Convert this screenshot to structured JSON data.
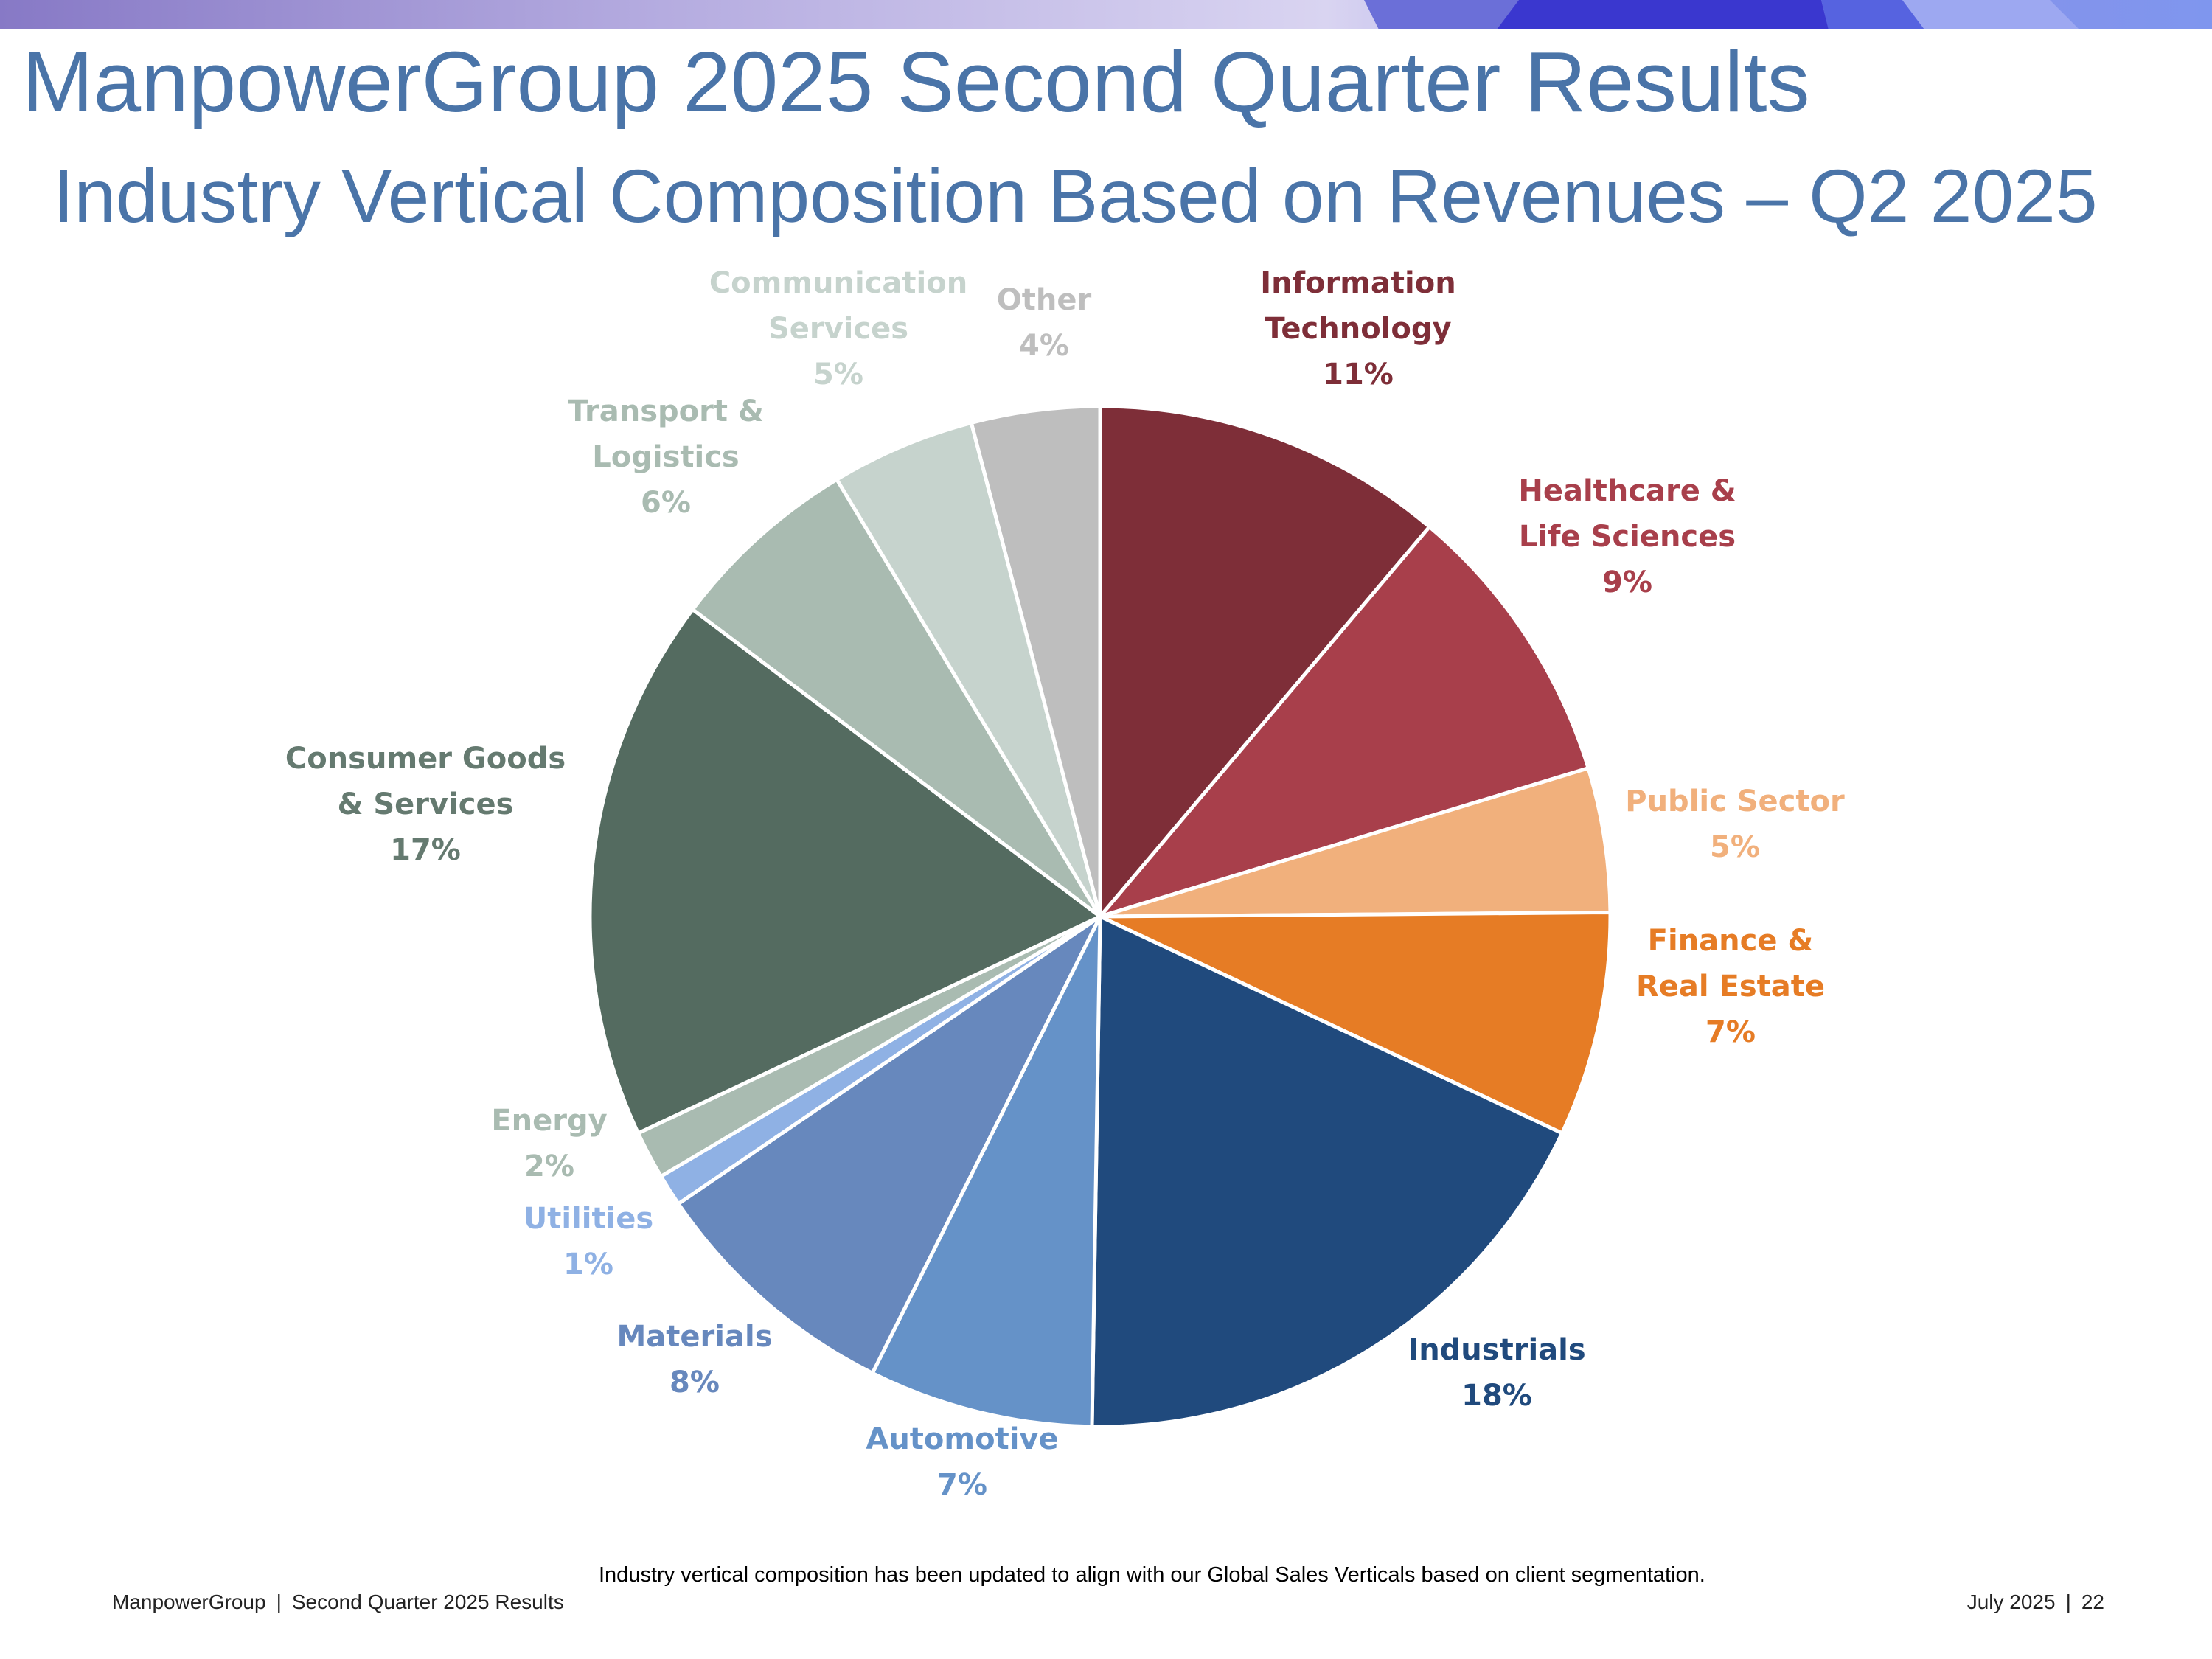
{
  "header": {
    "title": "ManpowerGroup 2025 Second Quarter Results",
    "subtitle": "Industry Vertical Composition Based on Revenues – Q2 2025"
  },
  "chart_data": {
    "type": "pie",
    "title": "Industry Vertical Composition Based on Revenues – Q2 2025",
    "unit": "%",
    "start_angle_deg": 0,
    "direction": "clockwise",
    "slices": [
      {
        "label": [
          "Information",
          "Technology"
        ],
        "pct_label": "11%",
        "value": 11,
        "color": "#7e2e38",
        "label_color": "#7e2e38"
      },
      {
        "label": [
          "Healthcare &",
          "Life Sciences"
        ],
        "pct_label": "9%",
        "value": 9,
        "color": "#a83f4b",
        "label_color": "#a83f4b"
      },
      {
        "label": [
          "Public Sector"
        ],
        "pct_label": "5%",
        "value": 4.5,
        "color": "#f1b07c",
        "label_color": "#f1b07c"
      },
      {
        "label": [
          "Finance &",
          "Real Estate"
        ],
        "pct_label": "7%",
        "value": 7,
        "color": "#e67c25",
        "label_color": "#e67c25"
      },
      {
        "label": [
          "Industrials"
        ],
        "pct_label": "18%",
        "value": 18,
        "color": "#204a7d",
        "label_color": "#204a7d"
      },
      {
        "label": [
          "Automotive"
        ],
        "pct_label": "7%",
        "value": 7,
        "color": "#6592c8",
        "label_color": "#6592c8"
      },
      {
        "label": [
          "Materials"
        ],
        "pct_label": "8%",
        "value": 8,
        "color": "#6788bd",
        "label_color": "#6788bd"
      },
      {
        "label": [
          "Utilities"
        ],
        "pct_label": "1%",
        "value": 1,
        "color": "#8fb1e4",
        "label_color": "#8fb1e4"
      },
      {
        "label": [
          "Energy"
        ],
        "pct_label": "2%",
        "value": 1.5,
        "color": "#a9bbb1",
        "label_color": "#a9bbb1"
      },
      {
        "label": [
          "Consumer Goods",
          "& Services"
        ],
        "pct_label": "17%",
        "value": 17,
        "color": "#546b60",
        "label_color": "#657a70"
      },
      {
        "label": [
          "Transport &",
          "Logistics"
        ],
        "pct_label": "6%",
        "value": 6,
        "color": "#a9bbb1",
        "label_color": "#a9bbb1"
      },
      {
        "label": [
          "Communication",
          "Services"
        ],
        "pct_label": "5%",
        "value": 4.5,
        "color": "#c6d3cd",
        "label_color": "#c6d3cd"
      },
      {
        "label": [
          "Other"
        ],
        "pct_label": "4%",
        "value": 4,
        "color": "#bebebe",
        "label_color": "#bebebe"
      }
    ]
  },
  "footnote": "Industry vertical composition has been updated to align with our Global Sales Verticals based on client segmentation.",
  "footer": {
    "left_company": "ManpowerGroup",
    "left_separator": "|",
    "left_doc": "Second Quarter 2025 Results",
    "right_date": "July 2025",
    "right_separator": "|",
    "right_page": "22"
  }
}
